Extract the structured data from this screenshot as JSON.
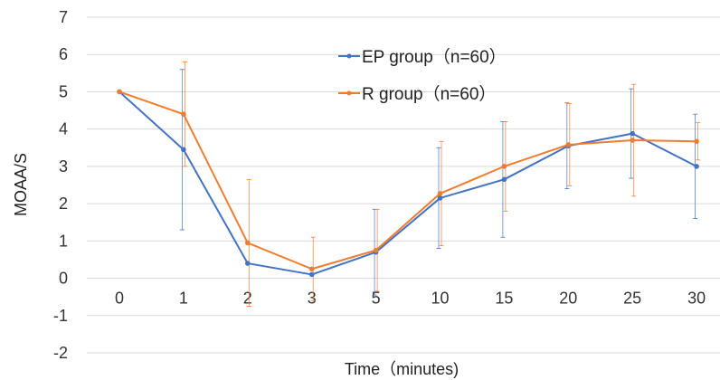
{
  "chart_data": {
    "type": "line",
    "title": "",
    "xlabel": "Time（minutes)",
    "ylabel": "MOAA/S",
    "ylim": [
      -2,
      7
    ],
    "y_ticks": [
      "7",
      "6",
      "5",
      "4",
      "3",
      "2",
      "1",
      "0",
      "-1",
      "-2"
    ],
    "categories": [
      "0",
      "1",
      "2",
      "3",
      "5",
      "10",
      "15",
      "20",
      "25",
      "30"
    ],
    "grid": true,
    "legend_position": "top-center",
    "series": [
      {
        "name": "EP group（n=60）",
        "color": "#4472C4",
        "values": [
          5.0,
          3.45,
          0.4,
          0.1,
          0.7,
          2.15,
          2.65,
          3.55,
          3.88,
          3.0
        ],
        "error": [
          0,
          2.15,
          0,
          0,
          1.15,
          1.35,
          1.55,
          1.15,
          1.2,
          1.4
        ]
      },
      {
        "name": "R group（n=60）",
        "color": "#ED7D31",
        "values": [
          5.0,
          4.4,
          0.95,
          0.25,
          0.75,
          2.27,
          3.0,
          3.58,
          3.7,
          3.67
        ],
        "error": [
          0,
          1.4,
          1.7,
          0.85,
          1.1,
          1.4,
          1.2,
          1.1,
          1.5,
          0.5
        ]
      }
    ]
  }
}
